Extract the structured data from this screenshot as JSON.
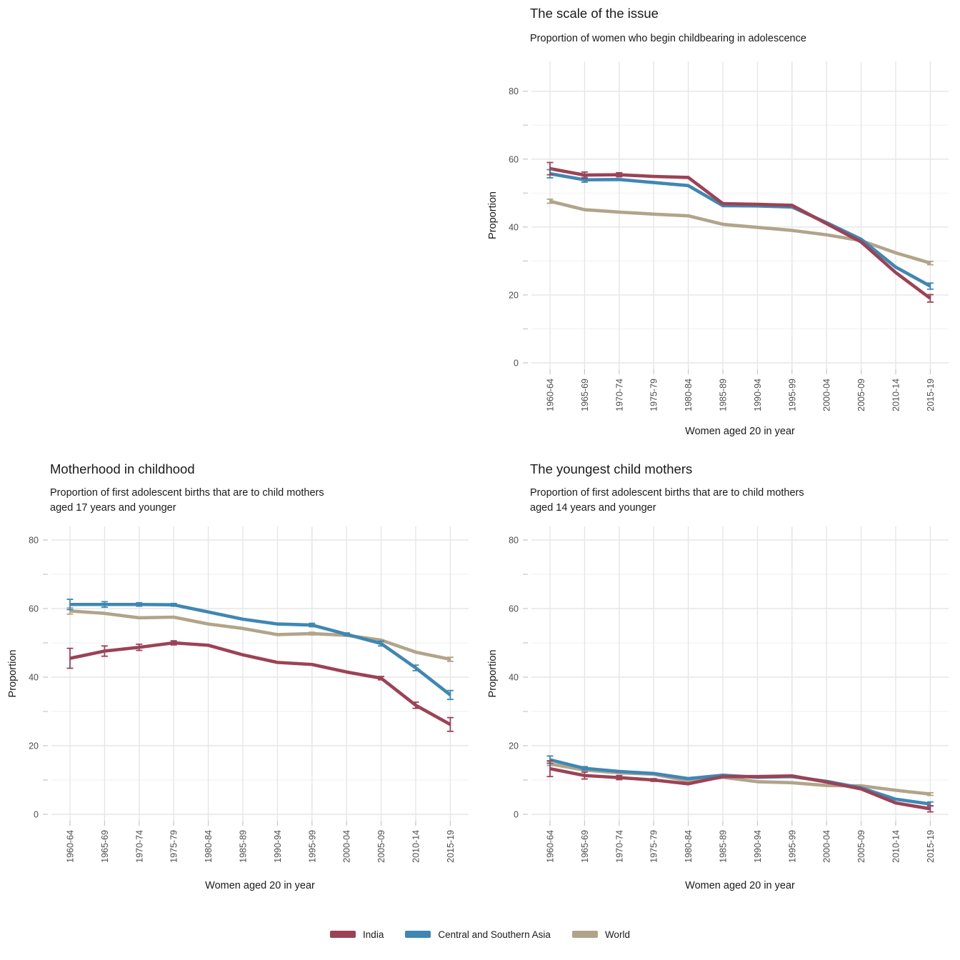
{
  "axis": {
    "x_title": "Women aged 20 in year",
    "y_title": "Proportion",
    "y_major_ticks": [
      0,
      20,
      40,
      60,
      80
    ],
    "y_minor_ticks": [
      10,
      30,
      50,
      70
    ],
    "ylim": [
      0,
      88
    ]
  },
  "legend": {
    "items": [
      {
        "label": "India",
        "color": "#9C4256"
      },
      {
        "label": "Central and Southern Asia",
        "color": "#3F87B3"
      },
      {
        "label": "World",
        "color": "#B1A489"
      }
    ]
  },
  "style": {
    "grid_major_color": "#e6e6e6",
    "grid_minor_color": "#f2f2f2",
    "tick_mark_color": "#c6c6c6",
    "tick_text_color": "#4d4d4d",
    "line_width": 4.6
  },
  "chart_data": [
    {
      "id": "scale-of-the-issue",
      "type": "line",
      "title": "The scale of the issue",
      "subtitle": "Proportion of women who begin childbearing in adolescence",
      "categories": [
        "1960-64",
        "1965-69",
        "1970-74",
        "1975-79",
        "1980-84",
        "1985-89",
        "1990-94",
        "1995-99",
        "2000-04",
        "2005-09",
        "2010-14",
        "2015-19"
      ],
      "series": [
        {
          "name": "India",
          "values": [
            57.2,
            55.3,
            55.4,
            54.9,
            54.6,
            46.9,
            46.7,
            46.4,
            41.0,
            35.6,
            26.6,
            19.0
          ],
          "err": [
            1.8,
            0.9,
            0.6,
            0,
            0,
            0,
            0,
            0,
            0,
            0,
            0,
            1.1
          ]
        },
        {
          "name": "Central and Southern Asia",
          "values": [
            55.7,
            53.9,
            54.0,
            53.1,
            52.2,
            46.3,
            46.2,
            45.9,
            41.3,
            36.4,
            28.2,
            22.6
          ],
          "err": [
            1.2,
            0.7,
            0,
            0,
            0,
            0,
            0,
            0,
            0,
            0,
            0,
            0.9
          ]
        },
        {
          "name": "World",
          "values": [
            47.6,
            45.1,
            44.4,
            43.8,
            43.3,
            40.8,
            39.9,
            39.0,
            37.7,
            36.0,
            32.4,
            29.4
          ],
          "err": [
            0.6,
            0,
            0,
            0,
            0,
            0,
            0,
            0,
            0,
            0,
            0,
            0.5
          ]
        }
      ]
    },
    {
      "id": "motherhood-in-childhood",
      "type": "line",
      "title": "Motherhood in childhood",
      "subtitle": "Proportion of first adolescent births that are to child mothers\naged 17 years and younger",
      "categories": [
        "1960-64",
        "1965-69",
        "1970-74",
        "1975-79",
        "1980-84",
        "1985-89",
        "1990-94",
        "1995-99",
        "2000-04",
        "2005-09",
        "2010-14",
        "2015-19"
      ],
      "series": [
        {
          "name": "India",
          "values": [
            45.5,
            47.6,
            48.7,
            50.0,
            49.3,
            46.5,
            44.3,
            43.7,
            41.5,
            39.7,
            31.8,
            26.2
          ],
          "err": [
            2.9,
            1.5,
            0.9,
            0.6,
            0,
            0,
            0,
            0,
            0,
            0.5,
            0.9,
            2.0
          ]
        },
        {
          "name": "Central and Southern Asia",
          "values": [
            61.2,
            61.2,
            61.2,
            61.1,
            59.0,
            56.9,
            55.5,
            55.2,
            52.5,
            49.8,
            42.7,
            34.8
          ],
          "err": [
            1.5,
            0.8,
            0.5,
            0.4,
            0,
            0,
            0,
            0.5,
            0.4,
            0.7,
            0.8,
            1.3
          ]
        },
        {
          "name": "World",
          "values": [
            59.3,
            58.6,
            57.3,
            57.5,
            55.5,
            54.2,
            52.4,
            52.7,
            52.2,
            50.8,
            47.3,
            45.2
          ],
          "err": [
            0.9,
            0,
            0,
            0,
            0,
            0,
            0,
            0.4,
            0,
            0,
            0,
            0.6
          ]
        }
      ]
    },
    {
      "id": "youngest-child-mothers",
      "type": "line",
      "title": "The youngest child mothers",
      "subtitle": "Proportion of first adolescent births that are to child mothers\naged 14 years and younger",
      "categories": [
        "1960-64",
        "1965-69",
        "1970-74",
        "1975-79",
        "1980-84",
        "1985-89",
        "1990-94",
        "1995-99",
        "2000-04",
        "2005-09",
        "2010-14",
        "2015-19"
      ],
      "series": [
        {
          "name": "India",
          "values": [
            13.3,
            11.3,
            10.7,
            10.0,
            8.9,
            11.0,
            11.0,
            11.2,
            9.4,
            7.4,
            3.3,
            1.6
          ],
          "err": [
            2.3,
            1.0,
            0.6,
            0.4,
            0,
            0,
            0,
            0,
            0,
            0,
            0,
            0.9
          ]
        },
        {
          "name": "Central and Southern Asia",
          "values": [
            15.9,
            13.4,
            12.5,
            11.9,
            10.4,
            11.4,
            10.8,
            11.0,
            9.6,
            7.7,
            4.4,
            3.0
          ],
          "err": [
            1.1,
            0.5,
            0,
            0,
            0,
            0,
            0,
            0,
            0,
            0,
            0,
            0.6
          ]
        },
        {
          "name": "World",
          "values": [
            14.7,
            12.9,
            12.1,
            11.7,
            9.7,
            10.8,
            9.5,
            9.2,
            8.4,
            8.3,
            7.0,
            5.9
          ],
          "err": [
            0.5,
            0,
            0,
            0,
            0,
            0,
            0,
            0,
            0,
            0,
            0,
            0.4
          ]
        }
      ]
    }
  ]
}
